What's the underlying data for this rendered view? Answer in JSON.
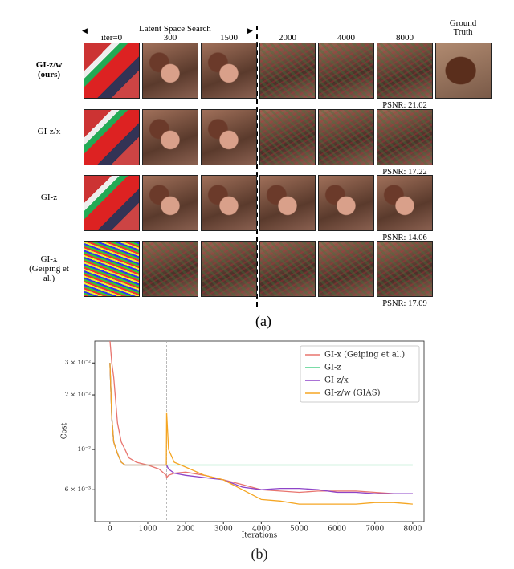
{
  "panel_a": {
    "search_label": "Latent Space Search",
    "columns": [
      "iter=0",
      "300",
      "1500",
      "2000",
      "4000",
      "8000",
      "Ground Truth"
    ],
    "rows": [
      {
        "label": "GI-z/w (ours)",
        "psnr": "PSNR: 21.02"
      },
      {
        "label": "GI-z/x",
        "psnr": "PSNR: 17.22"
      },
      {
        "label": "GI-z",
        "psnr": "PSNR: 14.06"
      },
      {
        "label": "GI-x (Geiping et al.)",
        "psnr": "PSNR: 17.09"
      }
    ],
    "caption": "(a)"
  },
  "chart_data": {
    "type": "line",
    "xlabel": "Iterations",
    "ylabel": "Cost",
    "log_y": true,
    "legend": "upper right",
    "vline": 1500,
    "xlim": [
      -400,
      8300
    ],
    "ylim": [
      0.004,
      0.0396
    ],
    "xticks": [
      0,
      1000,
      2000,
      3000,
      4000,
      5000,
      6000,
      7000,
      8000
    ],
    "yticks": [
      {
        "value": 0.006,
        "label": "6 × 10⁻³"
      },
      {
        "value": 0.01,
        "label": "10⁻²"
      },
      {
        "value": 0.02,
        "label": "2 × 10⁻²"
      },
      {
        "value": 0.03,
        "label": "3 × 10⁻²"
      }
    ],
    "x": [
      0,
      50,
      100,
      200,
      300,
      400,
      500,
      700,
      1000,
      1300,
      1490,
      1500,
      1550,
      1700,
      2000,
      2500,
      3000,
      3500,
      4000,
      4500,
      5000,
      5500,
      6000,
      6500,
      7000,
      7500,
      8000
    ],
    "series": [
      {
        "name": "GI-x (Geiping et al.)",
        "color": "#e8756f",
        "values": [
          0.04,
          0.03,
          0.025,
          0.014,
          0.011,
          0.01,
          0.009,
          0.0085,
          0.0082,
          0.0078,
          0.0072,
          0.007,
          0.0072,
          0.0074,
          0.0075,
          0.0072,
          0.0068,
          0.0064,
          0.006,
          0.0059,
          0.0058,
          0.0059,
          0.0059,
          0.0059,
          0.0058,
          0.0057,
          0.0057
        ]
      },
      {
        "name": "GI-z",
        "color": "#4fd08a",
        "values": [
          0.03,
          0.015,
          0.011,
          0.0095,
          0.0085,
          0.0082,
          0.0082,
          0.0082,
          0.0082,
          0.0082,
          0.0082,
          0.0082,
          0.0082,
          0.0082,
          0.0082,
          0.0082,
          0.0082,
          0.0082,
          0.0082,
          0.0082,
          0.0082,
          0.0082,
          0.0082,
          0.0082,
          0.0082,
          0.0082,
          0.0082
        ]
      },
      {
        "name": "GI-z/x",
        "color": "#8e44c8",
        "values": [
          0.03,
          0.015,
          0.011,
          0.0095,
          0.0085,
          0.0082,
          0.0082,
          0.0082,
          0.0082,
          0.0082,
          0.0082,
          0.0082,
          0.0078,
          0.0074,
          0.0072,
          0.007,
          0.0068,
          0.0062,
          0.006,
          0.0061,
          0.0061,
          0.006,
          0.0058,
          0.0058,
          0.0057,
          0.0057,
          0.0057
        ]
      },
      {
        "name": "GI-z/w (GIAS)",
        "color": "#f5a623",
        "values": [
          0.03,
          0.015,
          0.011,
          0.0095,
          0.0085,
          0.0082,
          0.0082,
          0.0082,
          0.0082,
          0.0082,
          0.0082,
          0.016,
          0.01,
          0.0085,
          0.008,
          0.0072,
          0.0068,
          0.006,
          0.0053,
          0.0052,
          0.005,
          0.005,
          0.005,
          0.005,
          0.0051,
          0.0051,
          0.005
        ]
      }
    ],
    "caption": "(b)"
  }
}
